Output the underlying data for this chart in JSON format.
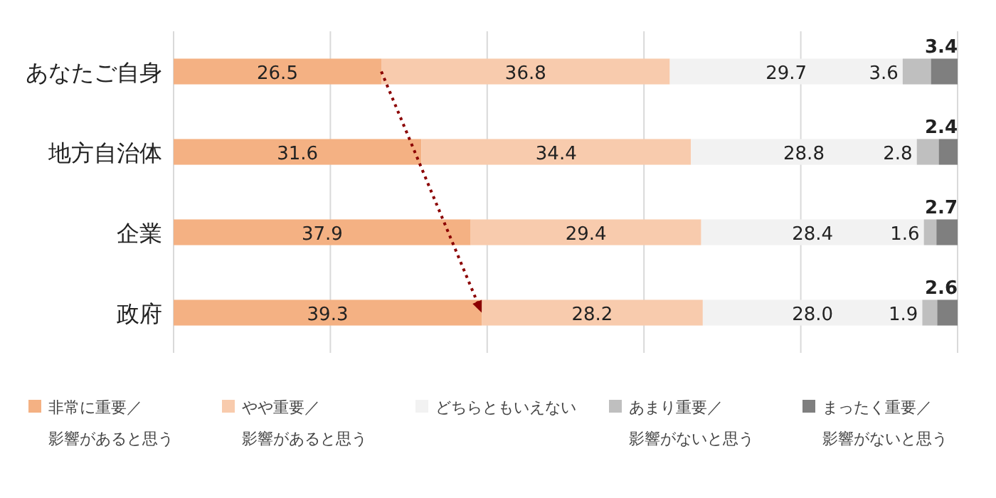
{
  "chart_data": {
    "type": "bar",
    "orientation": "horizontal",
    "stacked": true,
    "categories": [
      "あなたご自身",
      "地方自治体",
      "企業",
      "政府"
    ],
    "series": [
      {
        "name": "非常に重要／影響があると思う",
        "color": "#f4b183",
        "values": [
          26.5,
          31.6,
          37.9,
          39.3
        ],
        "value_labels": [
          "26.5",
          "31.6",
          "37.9",
          "39.3"
        ]
      },
      {
        "name": "やや重要／影響があると思う",
        "color": "#f8cbad",
        "values": [
          36.8,
          34.4,
          29.4,
          28.2
        ],
        "value_labels": [
          "36.8",
          "34.4",
          "29.4",
          "28.2"
        ]
      },
      {
        "name": "どちらともいえない",
        "color": "#f2f2f2",
        "values": [
          29.7,
          28.8,
          28.4,
          28.0
        ],
        "value_labels": [
          "29.7",
          "28.8",
          "28.4",
          "28.0"
        ]
      },
      {
        "name": "あまり重要／影響がないと思う",
        "color": "#bfbfbf",
        "values": [
          3.6,
          2.8,
          1.6,
          1.9
        ],
        "value_labels": [
          "3.6",
          "2.8",
          "1.6",
          "1.9"
        ]
      },
      {
        "name": "まったく重要／影響がないと思う",
        "color": "#7f7f7f",
        "values": [
          3.4,
          2.4,
          2.7,
          2.6
        ],
        "value_labels": [
          "3.4",
          "2.4",
          "2.7",
          "2.6"
        ]
      }
    ],
    "xlim": [
      0,
      100
    ],
    "xticks": [
      {
        "value": 0,
        "label": null
      },
      {
        "value": 20,
        "label": null
      },
      {
        "value": 40,
        "label": null
      },
      {
        "value": 60,
        "label": null
      },
      {
        "value": 80,
        "label": null
      },
      {
        "value": 100,
        "label": null
      }
    ],
    "grid": "x",
    "legend": "bottom",
    "tick_labels": "y"
  }
}
